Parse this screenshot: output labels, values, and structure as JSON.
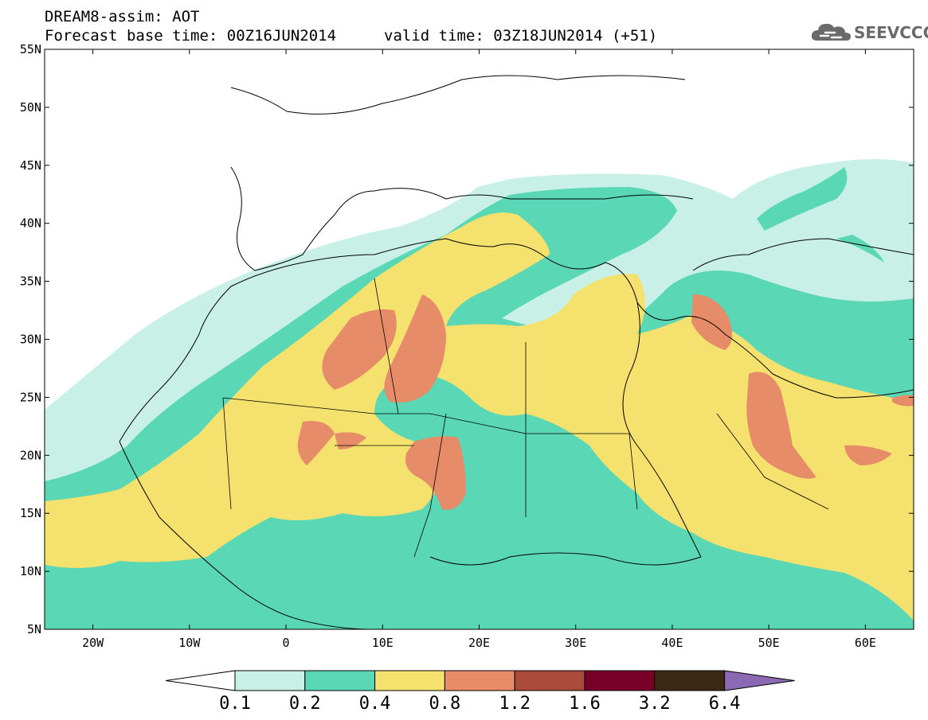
{
  "header": {
    "line1": "DREAM8-assim: AOT",
    "base_time": "Forecast base time: 00Z16JUN2014",
    "valid_time": "valid time: 03Z18JUN2014 (+51)",
    "logo_text": "SEEVCCC",
    "logo_icon": "cloud-icon"
  },
  "map": {
    "lon_range": [
      -25,
      65
    ],
    "lat_range": [
      5,
      55
    ],
    "lat_labels": [
      "55N",
      "50N",
      "45N",
      "40N",
      "35N",
      "30N",
      "25N",
      "20N",
      "15N",
      "10N",
      "5N"
    ],
    "lat_values": [
      55,
      50,
      45,
      40,
      35,
      30,
      25,
      20,
      15,
      10,
      5
    ],
    "lon_labels": [
      "20W",
      "10W",
      "0",
      "10E",
      "20E",
      "30E",
      "40E",
      "50E",
      "60E"
    ],
    "lon_values": [
      -20,
      -10,
      0,
      10,
      20,
      30,
      40,
      50,
      60
    ]
  },
  "colorbar": {
    "labels": [
      "0.1",
      "0.2",
      "0.4",
      "0.8",
      "1.2",
      "1.6",
      "3.2",
      "6.4"
    ],
    "colors": {
      "lt0_1": "#ffffff",
      "b0_1_0_2": "#c8f0e6",
      "b0_2_0_4": "#5ad7b4",
      "b0_4_0_8": "#f5e16e",
      "b0_8_1_2": "#e68c69",
      "b1_2_1_6": "#aa4b3c",
      "b1_6_3_2": "#780028",
      "b3_2_6_4": "#3c2814",
      "gt6_4": "#8c69b4"
    }
  }
}
